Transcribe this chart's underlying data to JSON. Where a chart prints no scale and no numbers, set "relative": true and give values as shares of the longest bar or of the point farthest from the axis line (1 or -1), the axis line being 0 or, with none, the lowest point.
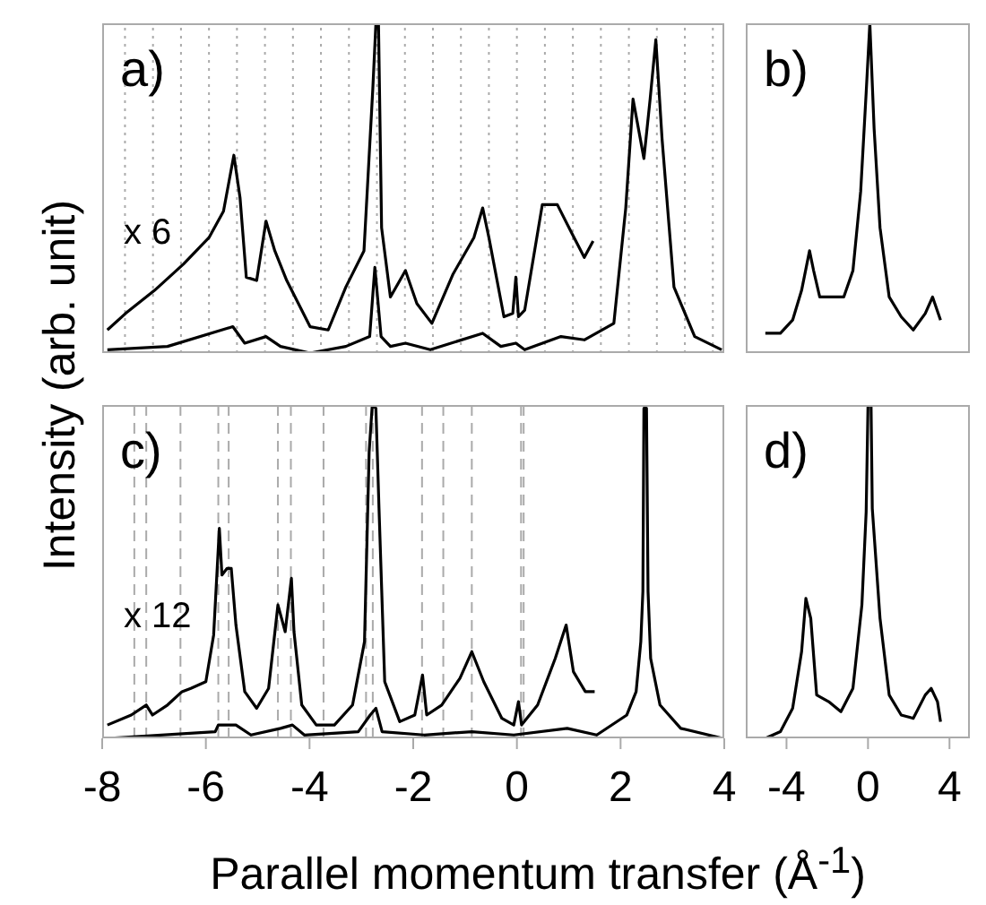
{
  "chart_data": [
    {
      "type": "line",
      "relative": true,
      "ylabel": "Intensity (arb. unit)",
      "annotations": [
        "a)",
        "x 6"
      ],
      "xlim": [
        -8,
        4
      ],
      "tick_labels": false,
      "line_style": "solid",
      "marker": "none",
      "series": [
        {
          "color": "#000000",
          "x": [
            -7.9,
            -7.55,
            -6.99,
            -6.43,
            -5.94,
            -5.66,
            -5.46,
            -5.34,
            -5.22,
            -5.02,
            -4.84,
            -4.67,
            -4.44,
            -3.99,
            -3.64,
            -3.3,
            -2.95,
            -2.78,
            -2.72,
            -2.67,
            -2.61,
            -2.44,
            -2.15,
            -1.93,
            -1.64,
            -1.23,
            -0.83,
            -0.66,
            -0.54,
            -0.25,
            -0.08,
            -0.02,
            0.03,
            0.15,
            0.49,
            0.78,
            1.07,
            1.3,
            1.47
          ],
          "values": [
            0.07,
            0.12,
            0.19,
            0.27,
            0.35,
            0.43,
            0.6,
            0.47,
            0.23,
            0.22,
            0.4,
            0.31,
            0.22,
            0.08,
            0.07,
            0.2,
            0.31,
            0.8,
            1.0,
            1.0,
            0.38,
            0.17,
            0.25,
            0.15,
            0.09,
            0.24,
            0.35,
            0.44,
            0.35,
            0.11,
            0.12,
            0.23,
            0.11,
            0.13,
            0.45,
            0.45,
            0.36,
            0.29,
            0.34
          ]
        },
        {
          "color": "#000000",
          "x": [
            -7.9,
            -6.74,
            -5.48,
            -5.25,
            -4.84,
            -4.56,
            -3.99,
            -3.3,
            -2.84,
            -2.74,
            -2.62,
            -2.44,
            -2.15,
            -1.67,
            -0.66,
            -0.31,
            -0.02,
            0.15,
            0.85,
            1.3,
            1.87,
            2.1,
            2.24,
            2.45,
            2.57,
            2.68,
            2.8,
            3.03,
            3.43,
            3.95
          ],
          "values": [
            0.01,
            0.02,
            0.08,
            0.03,
            0.05,
            0.02,
            0.0,
            0.02,
            0.05,
            0.26,
            0.05,
            0.02,
            0.03,
            0.01,
            0.06,
            0.02,
            0.03,
            0.01,
            0.05,
            0.04,
            0.09,
            0.44,
            0.77,
            0.59,
            0.77,
            0.95,
            0.65,
            0.2,
            0.05,
            0.01
          ]
        }
      ],
      "ref_lines": [
        {
          "axis": "x",
          "value": -7.56,
          "color": "#aaaaaa",
          "line_style": "dotted"
        },
        {
          "axis": "x",
          "value": -7.02,
          "color": "#aaaaaa",
          "line_style": "dotted"
        },
        {
          "axis": "x",
          "value": -6.48,
          "color": "#aaaaaa",
          "line_style": "dotted"
        },
        {
          "axis": "x",
          "value": -5.94,
          "color": "#aaaaaa",
          "line_style": "dotted"
        },
        {
          "axis": "x",
          "value": -5.4,
          "color": "#aaaaaa",
          "line_style": "dotted"
        },
        {
          "axis": "x",
          "value": -4.86,
          "color": "#aaaaaa",
          "line_style": "dotted"
        },
        {
          "axis": "x",
          "value": -4.32,
          "color": "#aaaaaa",
          "line_style": "dotted"
        },
        {
          "axis": "x",
          "value": -3.78,
          "color": "#aaaaaa",
          "line_style": "dotted"
        },
        {
          "axis": "x",
          "value": -3.24,
          "color": "#aaaaaa",
          "line_style": "dotted"
        },
        {
          "axis": "x",
          "value": -2.7,
          "color": "#aaaaaa",
          "line_style": "dotted"
        },
        {
          "axis": "x",
          "value": -2.16,
          "color": "#aaaaaa",
          "line_style": "dotted"
        },
        {
          "axis": "x",
          "value": -1.62,
          "color": "#aaaaaa",
          "line_style": "dotted"
        },
        {
          "axis": "x",
          "value": -1.08,
          "color": "#aaaaaa",
          "line_style": "dotted"
        },
        {
          "axis": "x",
          "value": -0.54,
          "color": "#aaaaaa",
          "line_style": "dotted"
        },
        {
          "axis": "x",
          "value": 0,
          "color": "#aaaaaa",
          "line_style": "dotted"
        },
        {
          "axis": "x",
          "value": 0.54,
          "color": "#aaaaaa",
          "line_style": "dotted"
        },
        {
          "axis": "x",
          "value": 1.08,
          "color": "#aaaaaa",
          "line_style": "dotted"
        },
        {
          "axis": "x",
          "value": 1.62,
          "color": "#aaaaaa",
          "line_style": "dotted"
        },
        {
          "axis": "x",
          "value": 2.16,
          "color": "#aaaaaa",
          "line_style": "dotted"
        },
        {
          "axis": "x",
          "value": 2.7,
          "color": "#aaaaaa",
          "line_style": "dotted"
        },
        {
          "axis": "x",
          "value": 3.24,
          "color": "#aaaaaa",
          "line_style": "dotted"
        },
        {
          "axis": "x",
          "value": 3.78,
          "color": "#aaaaaa",
          "line_style": "dotted"
        }
      ]
    },
    {
      "type": "line",
      "relative": true,
      "annotations": [
        "b)"
      ],
      "xlim": [
        -6,
        5
      ],
      "tick_labels": false,
      "line_style": "solid",
      "marker": "none",
      "series": [
        {
          "color": "#000000",
          "x": [
            -5.04,
            -4.3,
            -3.7,
            -3.26,
            -2.87,
            -2.67,
            -2.37,
            -1.78,
            -1.19,
            -0.74,
            -0.36,
            -0.09,
            0.09,
            0.3,
            0.59,
            1.04,
            1.63,
            2.22,
            2.81,
            3.17,
            3.56
          ],
          "values": [
            0.06,
            0.06,
            0.1,
            0.19,
            0.31,
            0.25,
            0.17,
            0.17,
            0.17,
            0.25,
            0.49,
            0.79,
            1.0,
            0.68,
            0.38,
            0.17,
            0.11,
            0.07,
            0.12,
            0.17,
            0.1
          ]
        }
      ]
    },
    {
      "type": "line",
      "relative": true,
      "xlabel": "Parallel momentum transfer (Å$^{-1}$)",
      "annotations": [
        "c)",
        "x 12"
      ],
      "xlim": [
        -8,
        4
      ],
      "xticks": [
        -8,
        -6,
        -4,
        -2,
        0,
        2,
        4
      ],
      "tick_labels": "x",
      "line_style": "solid",
      "marker": "none",
      "series": [
        {
          "color": "#000000",
          "x": [
            -7.9,
            -7.44,
            -7.15,
            -7.03,
            -6.74,
            -6.46,
            -6.29,
            -6.0,
            -5.85,
            -5.74,
            -5.69,
            -5.59,
            -5.51,
            -5.42,
            -5.25,
            -5.02,
            -4.79,
            -4.61,
            -4.47,
            -4.35,
            -4.3,
            -4.15,
            -3.87,
            -3.52,
            -3.17,
            -2.94,
            -2.85,
            -2.79,
            -2.72,
            -2.66,
            -2.55,
            -2.26,
            -1.97,
            -1.82,
            -1.74,
            -1.45,
            -1.1,
            -0.87,
            -0.64,
            -0.29,
            -0.06,
            0.03,
            0.09,
            0.4,
            0.74,
            0.95,
            1.09,
            1.32,
            1.5
          ],
          "values": [
            0.04,
            0.07,
            0.1,
            0.07,
            0.1,
            0.14,
            0.15,
            0.17,
            0.31,
            0.63,
            0.49,
            0.51,
            0.51,
            0.34,
            0.14,
            0.09,
            0.15,
            0.4,
            0.32,
            0.48,
            0.32,
            0.1,
            0.04,
            0.04,
            0.1,
            0.29,
            0.86,
            1.0,
            0.99,
            0.69,
            0.17,
            0.05,
            0.07,
            0.19,
            0.07,
            0.1,
            0.18,
            0.26,
            0.17,
            0.06,
            0.04,
            0.11,
            0.04,
            0.1,
            0.24,
            0.34,
            0.2,
            0.14,
            0.14
          ]
        },
        {
          "color": "#000000",
          "x": [
            -7.9,
            -5.82,
            -5.76,
            -5.42,
            -5.13,
            -4.56,
            -4.33,
            -4.1,
            -3.06,
            -2.83,
            -2.72,
            -2.6,
            -1.79,
            -0.87,
            -0.06,
            0.97,
            1.54,
            2.12,
            2.3,
            2.39,
            2.43,
            2.45,
            2.5,
            2.53,
            2.58,
            2.76,
            3.16,
            3.97
          ],
          "values": [
            0.0,
            0.02,
            0.04,
            0.04,
            0.01,
            0.03,
            0.04,
            0.01,
            0.02,
            0.07,
            0.09,
            0.02,
            0.01,
            0.02,
            0.01,
            0.03,
            0.01,
            0.07,
            0.14,
            0.29,
            0.44,
            0.99,
            0.99,
            0.44,
            0.24,
            0.1,
            0.03,
            0.0
          ]
        }
      ],
      "ref_lines": [
        {
          "axis": "x",
          "value": -7.38,
          "color": "#aaaaaa",
          "line_style": "dashed"
        },
        {
          "axis": "x",
          "value": -7.15,
          "color": "#aaaaaa",
          "line_style": "dashed"
        },
        {
          "axis": "x",
          "value": -6.49,
          "color": "#aaaaaa",
          "line_style": "dashed"
        },
        {
          "axis": "x",
          "value": -5.76,
          "color": "#aaaaaa",
          "line_style": "dashed"
        },
        {
          "axis": "x",
          "value": -5.56,
          "color": "#aaaaaa",
          "line_style": "dashed"
        },
        {
          "axis": "x",
          "value": -4.61,
          "color": "#aaaaaa",
          "line_style": "dashed"
        },
        {
          "axis": "x",
          "value": -4.36,
          "color": "#aaaaaa",
          "line_style": "dashed"
        },
        {
          "axis": "x",
          "value": -3.73,
          "color": "#aaaaaa",
          "line_style": "dashed"
        },
        {
          "axis": "x",
          "value": -2.91,
          "color": "#aaaaaa",
          "line_style": "dashed"
        },
        {
          "axis": "x",
          "value": -2.78,
          "color": "#aaaaaa",
          "line_style": "dashed"
        },
        {
          "axis": "x",
          "value": -1.83,
          "color": "#aaaaaa",
          "line_style": "dashed"
        },
        {
          "axis": "x",
          "value": -1.42,
          "color": "#aaaaaa",
          "line_style": "dashed"
        },
        {
          "axis": "x",
          "value": -0.87,
          "color": "#aaaaaa",
          "line_style": "dashed"
        },
        {
          "axis": "x",
          "value": 0.08,
          "color": "#aaaaaa",
          "line_style": "dashed"
        },
        {
          "axis": "x",
          "value": 0.13,
          "color": "#aaaaaa",
          "line_style": "dashed"
        }
      ]
    },
    {
      "type": "line",
      "relative": true,
      "annotations": [
        "d)"
      ],
      "xlim": [
        -6,
        5
      ],
      "xticks": [
        -4,
        0,
        4
      ],
      "tick_labels": "x",
      "line_style": "solid",
      "marker": "none",
      "series": [
        {
          "color": "#000000",
          "x": [
            -5.04,
            -4.3,
            -3.7,
            -3.26,
            -3.05,
            -2.81,
            -2.52,
            -1.93,
            -1.33,
            -0.74,
            -0.3,
            -0.09,
            0.0,
            0.15,
            0.21,
            0.59,
            1.04,
            1.63,
            2.22,
            2.81,
            3.1,
            3.41,
            3.56
          ],
          "values": [
            0.0,
            0.02,
            0.09,
            0.26,
            0.42,
            0.36,
            0.13,
            0.11,
            0.08,
            0.15,
            0.4,
            0.68,
            1.0,
            1.0,
            0.69,
            0.36,
            0.13,
            0.07,
            0.06,
            0.13,
            0.15,
            0.11,
            0.05
          ]
        }
      ]
    }
  ]
}
